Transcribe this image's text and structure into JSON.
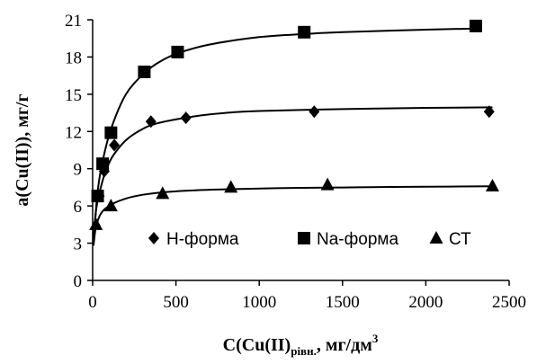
{
  "chart_data": {
    "type": "scatter",
    "title": "",
    "xlabel": {
      "main": "C(Cu(II)",
      "sub": "рівн.",
      "rest": ", мг/дм",
      "sup": "3"
    },
    "ylabel": "a(Cu(II)), мг/г",
    "xlim": [
      0,
      2500
    ],
    "ylim": [
      0,
      21
    ],
    "xticks": [
      0,
      500,
      1000,
      1500,
      2000,
      2500
    ],
    "yticks": [
      0,
      3,
      6,
      9,
      12,
      15,
      18,
      21
    ],
    "grid": false,
    "legend": "inside-bottom",
    "series": [
      {
        "name": "H-форма",
        "marker": "diamond",
        "points": [
          [
            40,
            6.8
          ],
          [
            70,
            8.8
          ],
          [
            130,
            10.9
          ],
          [
            350,
            12.8
          ],
          [
            560,
            13.1
          ],
          [
            1330,
            13.6
          ],
          [
            2380,
            13.6
          ]
        ],
        "curve": [
          [
            5,
            3.2
          ],
          [
            20,
            5.6
          ],
          [
            40,
            7.0
          ],
          [
            70,
            8.5
          ],
          [
            100,
            9.5
          ],
          [
            130,
            10.2
          ],
          [
            200,
            11.3
          ],
          [
            300,
            12.2
          ],
          [
            400,
            12.7
          ],
          [
            600,
            13.2
          ],
          [
            800,
            13.5
          ],
          [
            1000,
            13.65
          ],
          [
            1500,
            13.8
          ],
          [
            2000,
            13.9
          ],
          [
            2400,
            13.95
          ]
        ]
      },
      {
        "name": "Na-форма",
        "marker": "square",
        "points": [
          [
            30,
            6.8
          ],
          [
            60,
            9.4
          ],
          [
            110,
            11.9
          ],
          [
            310,
            16.8
          ],
          [
            510,
            18.4
          ],
          [
            1270,
            20.0
          ],
          [
            2300,
            20.5
          ]
        ],
        "curve": [
          [
            8,
            3.6
          ],
          [
            30,
            7.2
          ],
          [
            60,
            9.6
          ],
          [
            110,
            12.2
          ],
          [
            200,
            15.0
          ],
          [
            310,
            16.7
          ],
          [
            400,
            17.6
          ],
          [
            510,
            18.3
          ],
          [
            700,
            19.0
          ],
          [
            1000,
            19.6
          ],
          [
            1270,
            19.85
          ],
          [
            1500,
            20.0
          ],
          [
            2000,
            20.2
          ],
          [
            2300,
            20.3
          ]
        ]
      },
      {
        "name": "СТ",
        "marker": "triangle",
        "points": [
          [
            20,
            4.5
          ],
          [
            110,
            6.0
          ],
          [
            420,
            7.0
          ],
          [
            830,
            7.5
          ],
          [
            1410,
            7.7
          ],
          [
            2400,
            7.6
          ]
        ],
        "curve": [
          [
            5,
            2.8
          ],
          [
            20,
            4.3
          ],
          [
            50,
            5.4
          ],
          [
            110,
            6.1
          ],
          [
            200,
            6.6
          ],
          [
            300,
            6.9
          ],
          [
            420,
            7.1
          ],
          [
            600,
            7.25
          ],
          [
            830,
            7.35
          ],
          [
            1200,
            7.45
          ],
          [
            1600,
            7.5
          ],
          [
            2000,
            7.55
          ],
          [
            2400,
            7.58
          ]
        ]
      }
    ]
  }
}
